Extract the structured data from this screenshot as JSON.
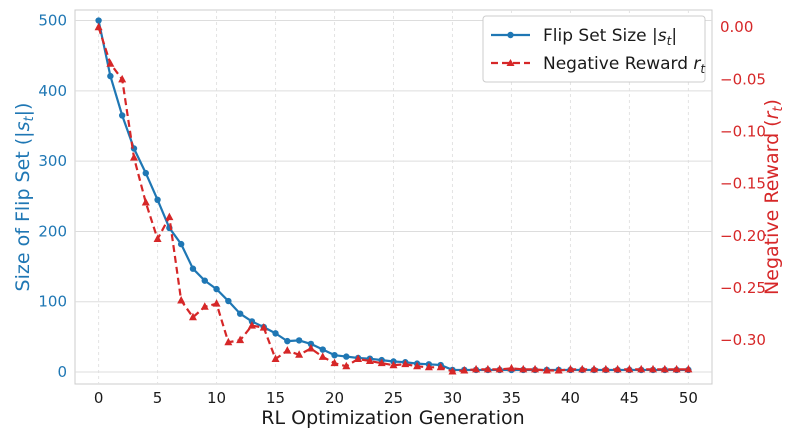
{
  "chart_data": {
    "type": "line",
    "x": [
      0,
      1,
      2,
      3,
      4,
      5,
      6,
      7,
      8,
      9,
      10,
      11,
      12,
      13,
      14,
      15,
      16,
      17,
      18,
      19,
      20,
      21,
      22,
      23,
      24,
      25,
      26,
      27,
      28,
      29,
      30,
      31,
      32,
      33,
      34,
      35,
      36,
      37,
      38,
      39,
      40,
      41,
      42,
      43,
      44,
      45,
      46,
      47,
      48,
      49,
      50
    ],
    "series": [
      {
        "name": "Flip Set Size |s_t|",
        "legend_main": "Flip Set Size ",
        "legend_math": "|s",
        "legend_sub": "t",
        "legend_tail": "|",
        "axis": "left",
        "color": "#1f77b4",
        "style": "solid",
        "marker": "circle",
        "values": [
          500,
          421,
          365,
          318,
          283,
          245,
          205,
          182,
          147,
          130,
          118,
          101,
          83,
          72,
          64,
          55,
          44,
          45,
          40,
          32,
          24,
          22,
          20,
          19,
          17,
          15,
          14,
          12,
          11,
          10,
          3,
          3,
          3,
          3,
          3,
          3,
          3,
          3,
          3,
          3,
          3,
          3,
          3,
          3,
          3,
          3,
          3,
          3,
          3,
          3,
          3
        ]
      },
      {
        "name": "Negative Reward r_t",
        "legend_main": "Negative Reward ",
        "legend_math": "r",
        "legend_sub": "t",
        "legend_tail": "",
        "axis": "right",
        "color": "#d62728",
        "style": "dashed",
        "marker": "triangle",
        "values": [
          0.0,
          -0.035,
          -0.05,
          -0.125,
          -0.168,
          -0.203,
          -0.182,
          -0.262,
          -0.278,
          -0.268,
          -0.265,
          -0.302,
          -0.3,
          -0.286,
          -0.288,
          -0.318,
          -0.31,
          -0.314,
          -0.308,
          -0.316,
          -0.322,
          -0.325,
          -0.318,
          -0.32,
          -0.322,
          -0.324,
          -0.323,
          -0.325,
          -0.326,
          -0.326,
          -0.33,
          -0.329,
          -0.328,
          -0.328,
          -0.328,
          -0.327,
          -0.328,
          -0.328,
          -0.329,
          -0.329,
          -0.328,
          -0.328,
          -0.328,
          -0.328,
          -0.328,
          -0.328,
          -0.328,
          -0.328,
          -0.328,
          -0.328,
          -0.328
        ]
      }
    ],
    "xlabel": "RL Optimization Generation",
    "ylabel_left_main": "Size of Flip Set (",
    "ylabel_left_math": "|s",
    "ylabel_left_sub": "t",
    "ylabel_left_tail": "|)",
    "ylabel_right_main": "Negative Reward (",
    "ylabel_right_math": "r",
    "ylabel_right_sub": "t",
    "ylabel_right_tail": ")",
    "xlim": [
      -2,
      52
    ],
    "xticks": [
      0,
      5,
      10,
      15,
      20,
      25,
      30,
      35,
      40,
      45,
      50
    ],
    "ylim_left": [
      -17,
      515
    ],
    "yticks_left": [
      0,
      100,
      200,
      300,
      400,
      500
    ],
    "ylim_right": [
      -0.342,
      0.0165
    ],
    "yticks_right": [
      0.0,
      -0.05,
      -0.1,
      -0.15,
      -0.2,
      -0.25,
      -0.3
    ],
    "ytick_labels_right": [
      "0.00",
      "−0.05",
      "−0.10",
      "−0.15",
      "−0.20",
      "−0.25",
      "−0.30"
    ],
    "grid": true,
    "legend_position": "top-right"
  }
}
